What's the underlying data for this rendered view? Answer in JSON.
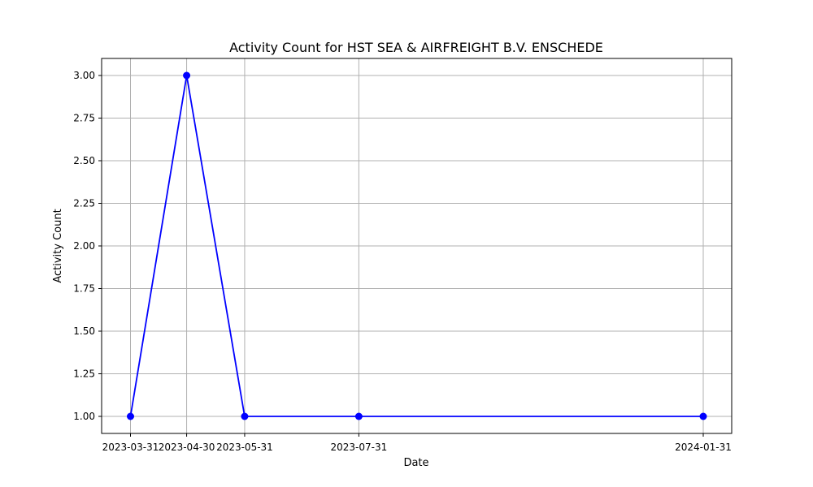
{
  "chart_data": {
    "type": "line",
    "title": "Activity Count for HST SEA & AIRFREIGHT B.V. ENSCHEDE",
    "xlabel": "Date",
    "ylabel": "Activity Count",
    "categories": [
      "2023-03-31",
      "2023-04-30",
      "2023-05-31",
      "2023-07-31",
      "2024-01-31"
    ],
    "series": [
      {
        "values": [
          1,
          3,
          1,
          1,
          1
        ]
      }
    ],
    "ylim": [
      0.9,
      3.1
    ],
    "yticks": [
      1.0,
      1.25,
      1.5,
      1.75,
      2.0,
      2.25,
      2.5,
      2.75,
      3.0
    ],
    "ytick_labels": [
      "1.00",
      "1.25",
      "1.50",
      "1.75",
      "2.00",
      "2.25",
      "2.50",
      "2.75",
      "3.00"
    ],
    "grid": true,
    "line_color": "#0000ff",
    "marker": "circle"
  }
}
